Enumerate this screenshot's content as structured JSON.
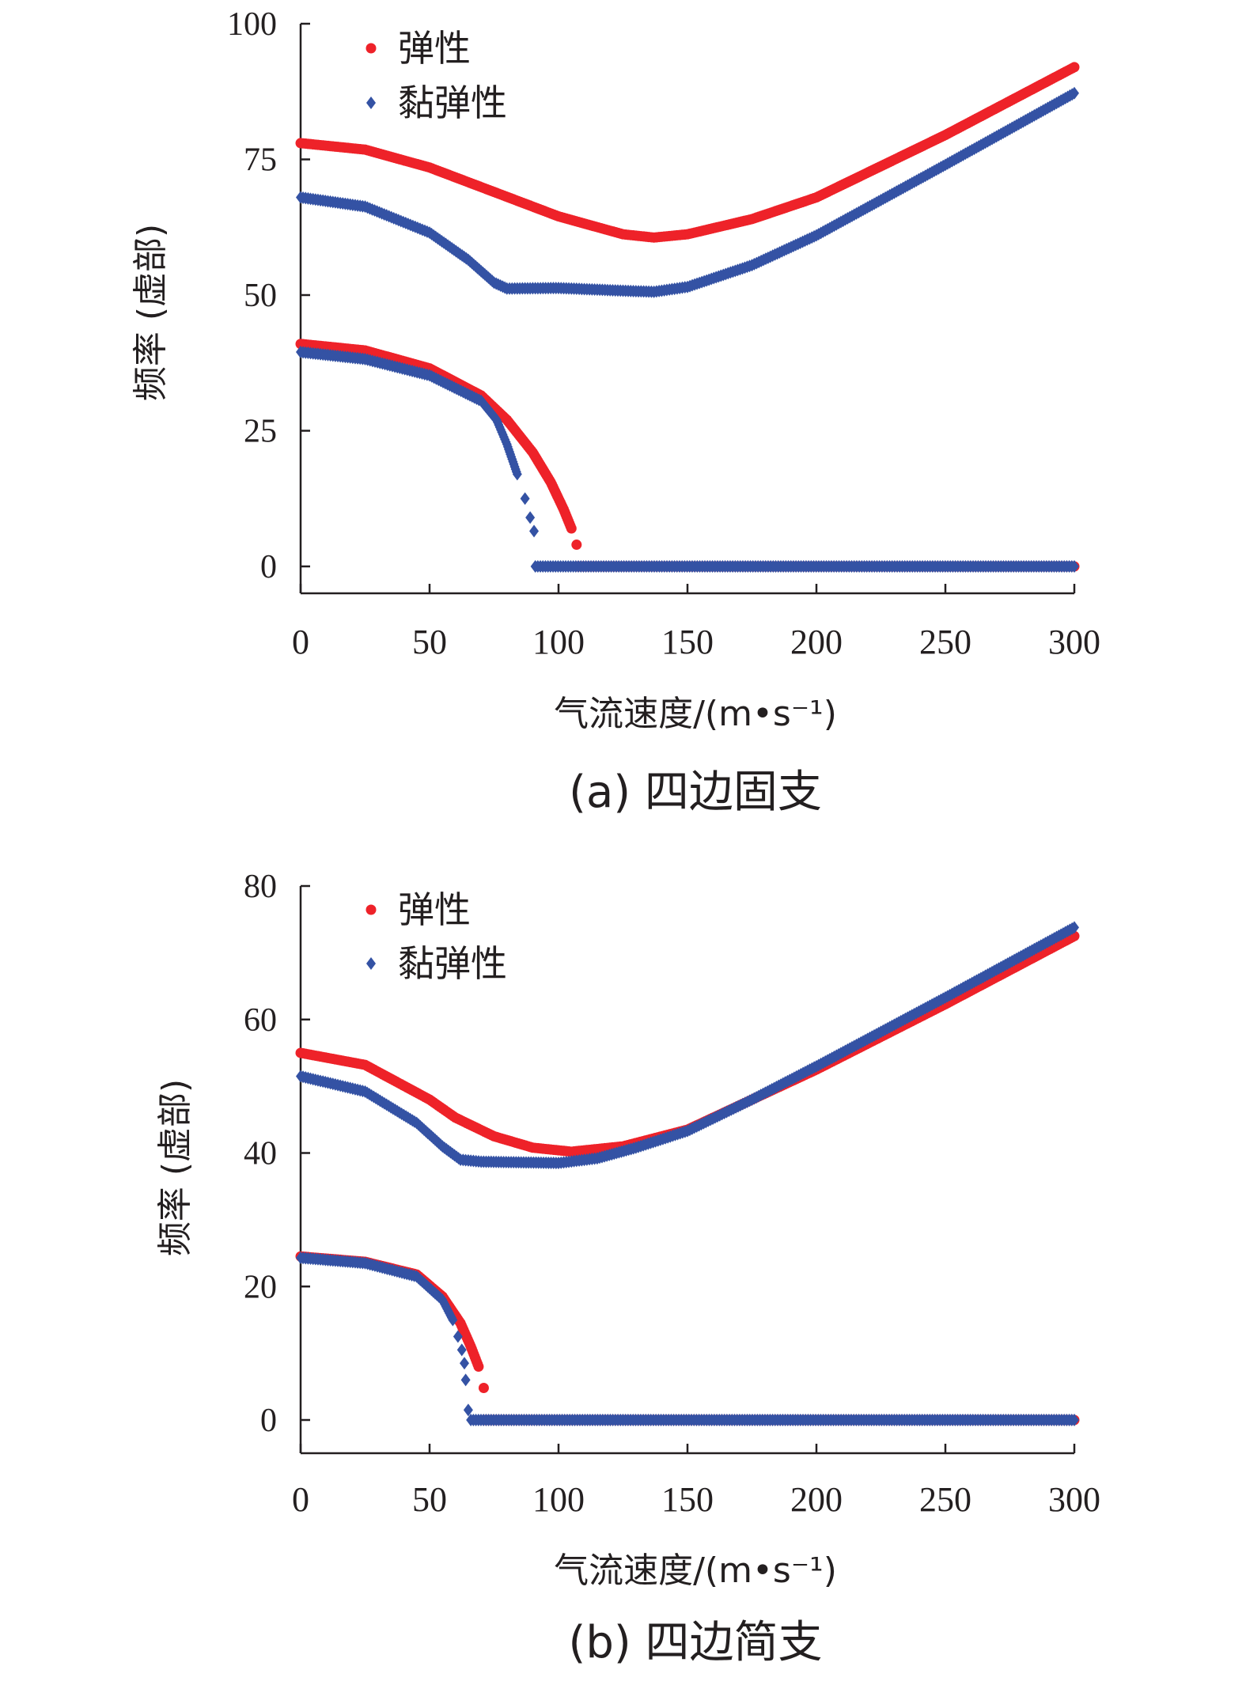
{
  "chart_data": [
    {
      "type": "scatter",
      "caption": "(a) 四边固支",
      "xlabel": "气流速度/(m•s⁻¹)",
      "ylabel": "频率 (虚部)",
      "xlim": [
        0,
        300
      ],
      "ylim": [
        0,
        100
      ],
      "xticks": [
        "0",
        "50",
        "100",
        "150",
        "200",
        "250",
        "300"
      ],
      "yticks": [
        "0",
        "25",
        "50",
        "75",
        "100"
      ],
      "legend": [
        "弹性",
        "黏弹性"
      ],
      "legend_position": "top-left",
      "grid": false,
      "series": [
        {
          "name": "弹性",
          "marker": "circle",
          "color": "#ee2229",
          "segments": [
            [
              [
                0,
                78
              ],
              [
                25,
                76.8
              ],
              [
                50,
                73.5
              ],
              [
                75,
                69
              ],
              [
                100,
                64.5
              ],
              [
                125,
                61.2
              ],
              [
                137,
                60.6
              ],
              [
                150,
                61.2
              ],
              [
                175,
                64
              ],
              [
                200,
                68
              ],
              [
                250,
                79.5
              ],
              [
                300,
                92
              ]
            ],
            [
              [
                0,
                41
              ],
              [
                25,
                39.8
              ],
              [
                50,
                36.5
              ],
              [
                70,
                31.5
              ],
              [
                80,
                27
              ],
              [
                90,
                21
              ],
              [
                97,
                15.5
              ],
              [
                102,
                10.5
              ],
              [
                105,
                7
              ],
              [
                107,
                4
              ]
            ],
            [
              [
                107,
                0
              ],
              [
                300,
                0
              ]
            ]
          ]
        },
        {
          "name": "黏弹性",
          "marker": "diamond",
          "color": "#3452a4",
          "segments": [
            [
              [
                0,
                68
              ],
              [
                25,
                66.3
              ],
              [
                50,
                61.5
              ],
              [
                65,
                56.5
              ],
              [
                75,
                52.3
              ],
              [
                80,
                51.2
              ],
              [
                100,
                51.3
              ],
              [
                125,
                50.8
              ],
              [
                137,
                50.6
              ],
              [
                150,
                51.5
              ],
              [
                175,
                55.5
              ],
              [
                200,
                61
              ],
              [
                250,
                74
              ],
              [
                300,
                87.2
              ]
            ],
            [
              [
                0,
                39.5
              ],
              [
                25,
                38.2
              ],
              [
                50,
                35.2
              ],
              [
                70,
                30.5
              ],
              [
                76,
                27
              ],
              [
                80,
                22.5
              ],
              [
                84,
                17
              ],
              [
                87,
                12.5
              ],
              [
                89,
                9
              ],
              [
                90.5,
                6.5
              ]
            ],
            [
              [
                91,
                0
              ],
              [
                300,
                0
              ]
            ]
          ]
        }
      ]
    },
    {
      "type": "scatter",
      "caption": "(b) 四边简支",
      "xlabel": "气流速度/(m•s⁻¹)",
      "ylabel": "频率 (虚部)",
      "xlim": [
        0,
        300
      ],
      "ylim": [
        0,
        80
      ],
      "xticks": [
        "0",
        "50",
        "100",
        "150",
        "200",
        "250",
        "300"
      ],
      "yticks": [
        "0",
        "20",
        "40",
        "60",
        "80"
      ],
      "legend": [
        "弹性",
        "黏弹性"
      ],
      "legend_position": "top-left",
      "grid": false,
      "series": [
        {
          "name": "弹性",
          "marker": "circle",
          "color": "#ee2229",
          "segments": [
            [
              [
                0,
                55
              ],
              [
                25,
                53.2
              ],
              [
                50,
                48
              ],
              [
                60,
                45.3
              ],
              [
                75,
                42.5
              ],
              [
                90,
                40.8
              ],
              [
                105,
                40.2
              ],
              [
                125,
                41
              ],
              [
                150,
                43.5
              ],
              [
                175,
                48
              ],
              [
                200,
                52.5
              ],
              [
                250,
                62.3
              ],
              [
                300,
                72.5
              ]
            ],
            [
              [
                0,
                24.5
              ],
              [
                25,
                23.7
              ],
              [
                45,
                21.8
              ],
              [
                55,
                18.5
              ],
              [
                62,
                14.5
              ],
              [
                66,
                11
              ],
              [
                69,
                8
              ],
              [
                71,
                4.8
              ]
            ],
            [
              [
                71,
                0
              ],
              [
                300,
                0
              ]
            ]
          ]
        },
        {
          "name": "黏弹性",
          "marker": "diamond",
          "color": "#3452a4",
          "segments": [
            [
              [
                0,
                51.5
              ],
              [
                25,
                49.2
              ],
              [
                45,
                44.5
              ],
              [
                55,
                41
              ],
              [
                62,
                39
              ],
              [
                70,
                38.7
              ],
              [
                100,
                38.5
              ],
              [
                115,
                39.2
              ],
              [
                130,
                40.8
              ],
              [
                150,
                43.3
              ],
              [
                175,
                48
              ],
              [
                200,
                53
              ],
              [
                250,
                63.3
              ],
              [
                300,
                73.8
              ]
            ],
            [
              [
                0,
                24.3
              ],
              [
                25,
                23.5
              ],
              [
                45,
                21.5
              ],
              [
                55,
                18
              ],
              [
                59,
                15
              ],
              [
                61,
                12.5
              ],
              [
                62.5,
                10.5
              ],
              [
                63.5,
                8.5
              ],
              [
                64,
                6
              ],
              [
                65,
                1.5
              ]
            ],
            [
              [
                66,
                0
              ],
              [
                300,
                0
              ]
            ]
          ]
        }
      ]
    }
  ]
}
